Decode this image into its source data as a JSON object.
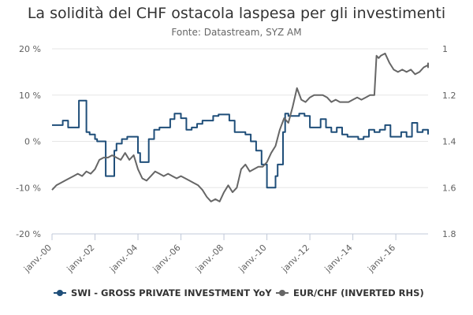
{
  "chart_data": {
    "type": "line",
    "title": "La solidità del CHF ostacola laspesa per gli investimenti",
    "subtitle": "Fonte: Datastream, SYZ AM",
    "x_ticks": [
      "janv.-00",
      "janv.-02",
      "janv.-04",
      "janv.-06",
      "janv.-08",
      "janv.-10",
      "janv.-12",
      "janv.-14",
      "janv.-16"
    ],
    "x_range": [
      2000,
      2017.5
    ],
    "y_left": {
      "range": [
        -20,
        20
      ],
      "ticks": [
        20,
        10,
        0,
        -10,
        -20
      ],
      "tick_labels": [
        "20 %",
        "10 %",
        "0 %",
        "-10 %",
        "-20 %"
      ]
    },
    "y_right": {
      "range": [
        1,
        1.8
      ],
      "inverted": true,
      "ticks": [
        1,
        1.2,
        1.4,
        1.6,
        1.8
      ],
      "tick_labels": [
        "1",
        "1.2",
        "1.4",
        "1.6",
        "1.8"
      ]
    },
    "grid": "horizontal",
    "legend_position": "bottom",
    "series": [
      {
        "name": "SWI - GROSS PRIVATE INVESTMENT YoY",
        "axis": "left",
        "color": "#1f4e79",
        "step": true,
        "points": [
          [
            2000.0,
            3.5
          ],
          [
            2000.25,
            3.5
          ],
          [
            2000.5,
            4.5
          ],
          [
            2000.75,
            3.0
          ],
          [
            2001.0,
            3.0
          ],
          [
            2001.25,
            8.8
          ],
          [
            2001.5,
            8.8
          ],
          [
            2001.6,
            2.0
          ],
          [
            2001.75,
            1.5
          ],
          [
            2002.0,
            0.5
          ],
          [
            2002.1,
            0.0
          ],
          [
            2002.25,
            0.0
          ],
          [
            2002.5,
            -7.5
          ],
          [
            2002.75,
            -7.5
          ],
          [
            2002.9,
            -2.0
          ],
          [
            2003.0,
            -0.5
          ],
          [
            2003.25,
            0.5
          ],
          [
            2003.5,
            1.0
          ],
          [
            2003.75,
            1.0
          ],
          [
            2004.0,
            -2.5
          ],
          [
            2004.1,
            -4.5
          ],
          [
            2004.25,
            -4.5
          ],
          [
            2004.5,
            0.5
          ],
          [
            2004.75,
            2.5
          ],
          [
            2005.0,
            3.0
          ],
          [
            2005.25,
            3.0
          ],
          [
            2005.5,
            4.8
          ],
          [
            2005.7,
            6.0
          ],
          [
            2005.8,
            6.0
          ],
          [
            2006.0,
            5.0
          ],
          [
            2006.25,
            2.5
          ],
          [
            2006.5,
            3.0
          ],
          [
            2006.75,
            3.8
          ],
          [
            2007.0,
            4.5
          ],
          [
            2007.25,
            4.5
          ],
          [
            2007.5,
            5.5
          ],
          [
            2007.75,
            5.8
          ],
          [
            2008.0,
            5.8
          ],
          [
            2008.25,
            4.5
          ],
          [
            2008.5,
            2.0
          ],
          [
            2008.75,
            2.0
          ],
          [
            2009.0,
            1.5
          ],
          [
            2009.25,
            0.0
          ],
          [
            2009.5,
            -2.0
          ],
          [
            2009.75,
            -5.0
          ],
          [
            2010.0,
            -10.0
          ],
          [
            2010.25,
            -10.0
          ],
          [
            2010.4,
            -7.5
          ],
          [
            2010.5,
            -5.0
          ],
          [
            2010.75,
            2.0
          ],
          [
            2010.85,
            6.0
          ],
          [
            2011.0,
            5.5
          ],
          [
            2011.25,
            5.5
          ],
          [
            2011.5,
            6.0
          ],
          [
            2011.75,
            5.5
          ],
          [
            2012.0,
            3.0
          ],
          [
            2012.25,
            3.0
          ],
          [
            2012.5,
            4.8
          ],
          [
            2012.75,
            3.0
          ],
          [
            2013.0,
            2.0
          ],
          [
            2013.25,
            3.0
          ],
          [
            2013.5,
            1.5
          ],
          [
            2013.75,
            1.0
          ],
          [
            2014.0,
            1.0
          ],
          [
            2014.25,
            0.5
          ],
          [
            2014.5,
            1.0
          ],
          [
            2014.75,
            2.5
          ],
          [
            2015.0,
            2.0
          ],
          [
            2015.25,
            2.5
          ],
          [
            2015.5,
            3.5
          ],
          [
            2015.75,
            1.0
          ],
          [
            2016.0,
            1.0
          ],
          [
            2016.25,
            2.0
          ],
          [
            2016.5,
            1.0
          ],
          [
            2016.75,
            4.0
          ],
          [
            2016.9,
            4.0
          ],
          [
            2017.0,
            2.0
          ],
          [
            2017.25,
            2.5
          ],
          [
            2017.5,
            2.5
          ],
          [
            2017.75,
            1.5
          ],
          [
            2018.0,
            1.5
          ]
        ]
      },
      {
        "name": "EUR/CHF (INVERTED RHS)",
        "axis": "right",
        "color": "#666666",
        "step": false,
        "points": [
          [
            2000.0,
            1.61
          ],
          [
            2000.2,
            1.59
          ],
          [
            2000.4,
            1.58
          ],
          [
            2000.6,
            1.57
          ],
          [
            2000.8,
            1.56
          ],
          [
            2001.0,
            1.55
          ],
          [
            2001.2,
            1.54
          ],
          [
            2001.4,
            1.55
          ],
          [
            2001.6,
            1.53
          ],
          [
            2001.8,
            1.54
          ],
          [
            2002.0,
            1.52
          ],
          [
            2002.2,
            1.48
          ],
          [
            2002.4,
            1.47
          ],
          [
            2002.6,
            1.47
          ],
          [
            2002.8,
            1.46
          ],
          [
            2003.0,
            1.47
          ],
          [
            2003.2,
            1.48
          ],
          [
            2003.4,
            1.45
          ],
          [
            2003.6,
            1.48
          ],
          [
            2003.8,
            1.46
          ],
          [
            2004.0,
            1.52
          ],
          [
            2004.2,
            1.56
          ],
          [
            2004.4,
            1.57
          ],
          [
            2004.6,
            1.55
          ],
          [
            2004.8,
            1.53
          ],
          [
            2005.0,
            1.54
          ],
          [
            2005.2,
            1.55
          ],
          [
            2005.4,
            1.54
          ],
          [
            2005.6,
            1.55
          ],
          [
            2005.8,
            1.56
          ],
          [
            2006.0,
            1.55
          ],
          [
            2006.2,
            1.56
          ],
          [
            2006.4,
            1.57
          ],
          [
            2006.6,
            1.58
          ],
          [
            2006.8,
            1.59
          ],
          [
            2007.0,
            1.61
          ],
          [
            2007.2,
            1.64
          ],
          [
            2007.4,
            1.66
          ],
          [
            2007.6,
            1.65
          ],
          [
            2007.8,
            1.66
          ],
          [
            2008.0,
            1.62
          ],
          [
            2008.2,
            1.59
          ],
          [
            2008.4,
            1.62
          ],
          [
            2008.6,
            1.6
          ],
          [
            2008.8,
            1.52
          ],
          [
            2009.0,
            1.5
          ],
          [
            2009.2,
            1.53
          ],
          [
            2009.4,
            1.52
          ],
          [
            2009.6,
            1.51
          ],
          [
            2009.8,
            1.51
          ],
          [
            2010.0,
            1.49
          ],
          [
            2010.2,
            1.45
          ],
          [
            2010.4,
            1.42
          ],
          [
            2010.6,
            1.35
          ],
          [
            2010.8,
            1.3
          ],
          [
            2011.0,
            1.32
          ],
          [
            2011.2,
            1.25
          ],
          [
            2011.4,
            1.17
          ],
          [
            2011.6,
            1.22
          ],
          [
            2011.8,
            1.23
          ],
          [
            2012.0,
            1.21
          ],
          [
            2012.2,
            1.2
          ],
          [
            2012.4,
            1.2
          ],
          [
            2012.6,
            1.2
          ],
          [
            2012.8,
            1.21
          ],
          [
            2013.0,
            1.23
          ],
          [
            2013.2,
            1.22
          ],
          [
            2013.4,
            1.23
          ],
          [
            2013.6,
            1.23
          ],
          [
            2013.8,
            1.23
          ],
          [
            2014.0,
            1.22
          ],
          [
            2014.2,
            1.21
          ],
          [
            2014.4,
            1.22
          ],
          [
            2014.6,
            1.21
          ],
          [
            2014.8,
            1.2
          ],
          [
            2015.0,
            1.2
          ],
          [
            2015.1,
            1.03
          ],
          [
            2015.2,
            1.04
          ],
          [
            2015.3,
            1.03
          ],
          [
            2015.5,
            1.02
          ],
          [
            2015.7,
            1.06
          ],
          [
            2015.9,
            1.09
          ],
          [
            2016.1,
            1.1
          ],
          [
            2016.3,
            1.09
          ],
          [
            2016.5,
            1.1
          ],
          [
            2016.7,
            1.09
          ],
          [
            2016.9,
            1.11
          ],
          [
            2017.1,
            1.1
          ],
          [
            2017.3,
            1.08
          ],
          [
            2017.5,
            1.07
          ],
          [
            2017.7,
            1.08
          ],
          [
            2017.9,
            1.07
          ],
          [
            2018.0,
            1.06
          ]
        ]
      }
    ]
  }
}
